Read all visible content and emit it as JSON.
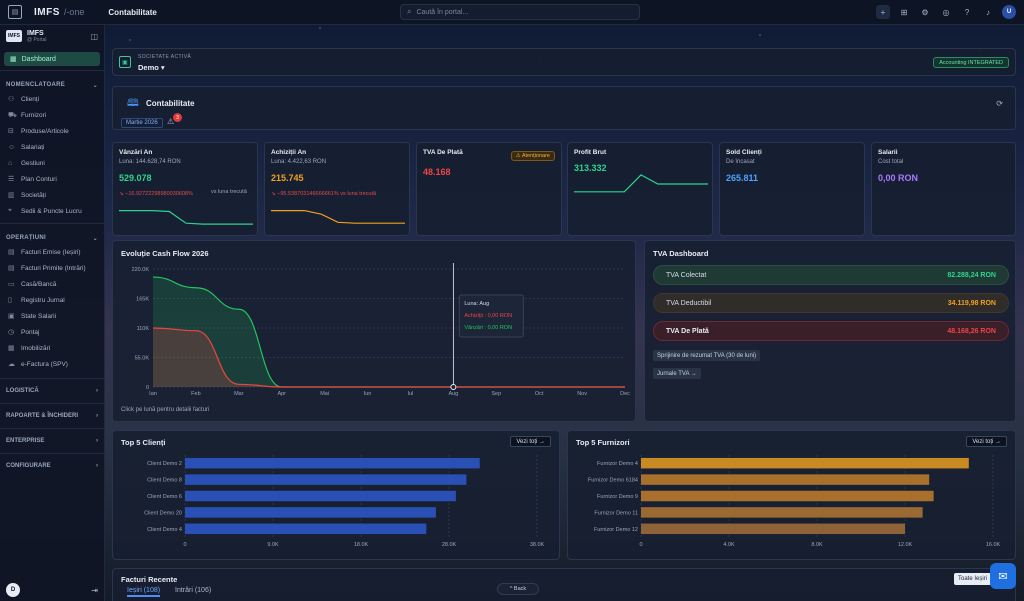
{
  "topbar": {
    "brand": "IMFS",
    "brand_sub": "/-one",
    "section": "Contabilitate",
    "search_placeholder": "Caută în portal...",
    "avatar": "U"
  },
  "sidebar": {
    "org_name": "IMFS",
    "org_sub": "@ Portal",
    "logo": "IMFS",
    "dashboard": "Dashboard",
    "groups": [
      {
        "label": "NOMENCLATOARE",
        "items": [
          "Clienți",
          "Furnizori",
          "Produse/Articole",
          "Salariați",
          "Gestiuni",
          "Plan Conturi",
          "Societăți",
          "Sedii & Puncte Lucru"
        ]
      },
      {
        "label": "OPERAȚIUNI",
        "items": [
          "Facturi Emise (Ieșiri)",
          "Facturi Primite (Intrări)",
          "Casă/Bancă",
          "Registru Jurnal",
          "State Salarii",
          "Pontaj",
          "Imobilizări",
          "e-Factura (SPV)"
        ]
      }
    ],
    "collapsed": [
      "LOGISTICĂ",
      "RAPOARTE & ÎNCHIDERI",
      "ENTERPRISE",
      "CONFIGURARE"
    ],
    "footer_avatar": "D"
  },
  "company": {
    "label": "SOCIETATE ACTIVĂ",
    "name": "Demo",
    "badge": "Accounting INTEGRATED"
  },
  "accounting": {
    "title": "Contabilitate",
    "period": "Martie 2026",
    "notif_count": "3"
  },
  "kpis": [
    {
      "title": "Vânzări An",
      "sub": "Luna: 144.628,74 RON",
      "value": "529.078",
      "value_color": "#2fd38e",
      "delta": "↘ −16.92722298980030608%",
      "vs": "vs luna trecută",
      "spark": [
        0.8,
        0.8,
        0.8,
        0.75,
        0.1,
        0.05,
        0.05,
        0.05,
        0.05
      ],
      "spark_color": "#2fd38e"
    },
    {
      "title": "Achiziții An",
      "sub": "Luna: 4.422,63 RON",
      "value": "215.745",
      "value_color": "#f0a020",
      "delta": "↘ −95.538703146666661% vs luna trecută",
      "vs": "",
      "spark": [
        0.8,
        0.8,
        0.8,
        0.6,
        0.15,
        0.1,
        0.1,
        0.1,
        0.1
      ],
      "spark_color": "#f0a020"
    },
    {
      "title": "TVA De Plată",
      "sub": "",
      "value": "48.168",
      "value_color": "#ef4444",
      "warn": "⚠ Atenționare"
    },
    {
      "title": "Profit Brut",
      "sub": "",
      "value": "313.332",
      "value_color": "#2fd38e",
      "spark": [
        0.2,
        0.2,
        0.2,
        0.2,
        0.85,
        0.5,
        0.5,
        0.5,
        0.5
      ],
      "spark_color": "#2fd38e"
    },
    {
      "title": "Sold Clienți",
      "sub": "De încasat",
      "value": "265.811",
      "value_color": "#4fa1ff"
    },
    {
      "title": "Salarii",
      "sub": "Cost total",
      "value": "0,00 RON",
      "value_color": "#a779ff"
    }
  ],
  "cashflow": {
    "title": "Evoluție Cash Flow 2026",
    "footer": "Click pe lună pentru detalii facturi",
    "tooltip": {
      "title": "Luna: Aug",
      "achizitii": "Achiziții : 0,00 RON",
      "vanzari": "Vânzări : 0,00 RON"
    }
  },
  "chart_data": [
    {
      "type": "area",
      "title": "Evoluție Cash Flow 2026",
      "categories": [
        "Ian",
        "Feb",
        "Mar",
        "Apr",
        "Mai",
        "Iun",
        "Iul",
        "Aug",
        "Sep",
        "Oct",
        "Nov",
        "Dec"
      ],
      "y_ticks": [
        "0",
        "55.0K",
        "110K",
        "165K",
        "220.0K"
      ],
      "ylim": [
        0,
        220000
      ],
      "series": [
        {
          "name": "Vânzări",
          "color": "#22c55e",
          "values": [
            205000,
            185000,
            145000,
            0,
            0,
            0,
            0,
            0,
            0,
            0,
            0,
            0
          ]
        },
        {
          "name": "Achiziții",
          "color": "#ef4444",
          "values": [
            110000,
            105000,
            5000,
            0,
            0,
            0,
            0,
            0,
            0,
            0,
            0,
            0
          ]
        }
      ],
      "highlight": "Aug"
    },
    {
      "type": "bar",
      "title": "Top 5 Clienți",
      "orientation": "horizontal",
      "categories": [
        "Client Demo 2",
        "Client Demo 8",
        "Client Demo 6",
        "Client Demo 20",
        "Client Demo 4"
      ],
      "values": [
        30900,
        29500,
        28400,
        26300,
        25300
      ],
      "x_ticks": [
        "0",
        "9.0K",
        "18.0K",
        "28.0K",
        "38.0K"
      ],
      "xlim": [
        0,
        36900
      ],
      "color": "#2a4fb5"
    },
    {
      "type": "bar",
      "title": "Top 5 Furnizori",
      "orientation": "horizontal",
      "categories": [
        "Furnizor Demo 4",
        "Furnizor Demo 6184",
        "Furnizor Demo 9",
        "Furnizor Demo 11",
        "Furnizor Demo 12"
      ],
      "values": [
        14900,
        13100,
        13300,
        12800,
        12000
      ],
      "x_ticks": [
        "0",
        "4.0K",
        "8.0K",
        "12.0K",
        "16.0K"
      ],
      "xlim": [
        0,
        16000
      ],
      "colors": [
        "#c98a24",
        "#a8702c",
        "#a8702c",
        "#9a6a32",
        "#8c6236"
      ]
    }
  ],
  "tva": {
    "title": "TVA Dashboard",
    "rows": [
      {
        "label": "TVA Colectat",
        "value": "82.288,24 RON",
        "color": "#2fd38e",
        "bg": "#1f3a34",
        "border": "#28503f"
      },
      {
        "label": "TVA Deductibil",
        "value": "34.119,98 RON",
        "color": "#f0a020",
        "bg": "#2f2c2a",
        "border": "#40382c"
      },
      {
        "label": "TVA De Plată",
        "value": "48.168,26 RON",
        "color": "#ef4444",
        "bg": "#3a1f29",
        "border": "#6a2a34"
      }
    ],
    "btn1": "Sprijinire de rezumat TVA (30 de luni)",
    "btn2": "Jurnale TVA →"
  },
  "top_clients": {
    "title": "Top 5 Clienți",
    "all": "Vezi toți →"
  },
  "top_suppliers": {
    "title": "Top 5 Furnizori",
    "all": "Vezi toți →"
  },
  "recent": {
    "title": "Facturi Recente",
    "tab1": "Ieșiri (108)",
    "tab2": "Intrări (106)",
    "all": "Toate Ieșiri"
  },
  "back_label": "^ Back"
}
